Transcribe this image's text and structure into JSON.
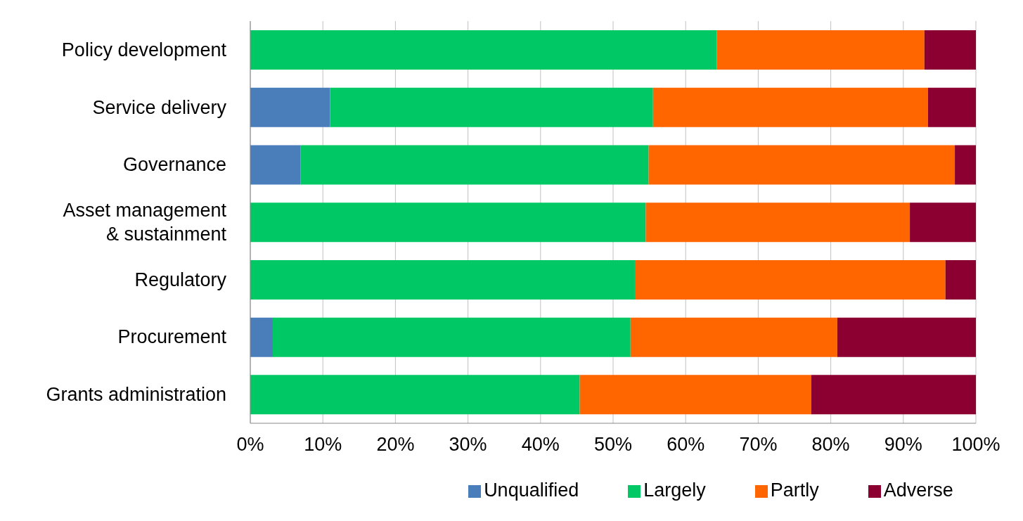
{
  "chart_data": {
    "type": "bar",
    "orientation": "horizontal",
    "stacked": true,
    "categories": [
      "Policy development",
      "Service delivery",
      "Governance",
      "Asset management\n& sustainment",
      "Regulatory",
      "Procurement",
      "Grants administration"
    ],
    "series": [
      {
        "name": "Unqualified",
        "color": "#4a7ebb",
        "values": [
          0,
          11.0,
          6.9,
          0,
          0,
          3.1,
          0
        ]
      },
      {
        "name": "Largely",
        "color": "#00c864",
        "values": [
          64.3,
          44.5,
          48.0,
          54.5,
          53.0,
          49.3,
          45.4
        ]
      },
      {
        "name": "Partly",
        "color": "#ff6600",
        "values": [
          28.6,
          37.9,
          42.2,
          36.4,
          42.8,
          28.5,
          31.9
        ]
      },
      {
        "name": "Adverse",
        "color": "#8b0030",
        "values": [
          7.1,
          6.6,
          2.9,
          9.1,
          4.2,
          19.1,
          22.7
        ]
      }
    ],
    "xlim": [
      0,
      100
    ],
    "xticks": [
      {
        "value": 0,
        "label": "0%"
      },
      {
        "value": 10,
        "label": "10%"
      },
      {
        "value": 20,
        "label": "20%"
      },
      {
        "value": 30,
        "label": "30%"
      },
      {
        "value": 40,
        "label": "40%"
      },
      {
        "value": 50,
        "label": "50%"
      },
      {
        "value": 60,
        "label": "60%"
      },
      {
        "value": 70,
        "label": "70%"
      },
      {
        "value": 80,
        "label": "80%"
      },
      {
        "value": 90,
        "label": "90%"
      },
      {
        "value": 100,
        "label": "100%"
      }
    ],
    "grid": "x",
    "legend": "bottom"
  }
}
